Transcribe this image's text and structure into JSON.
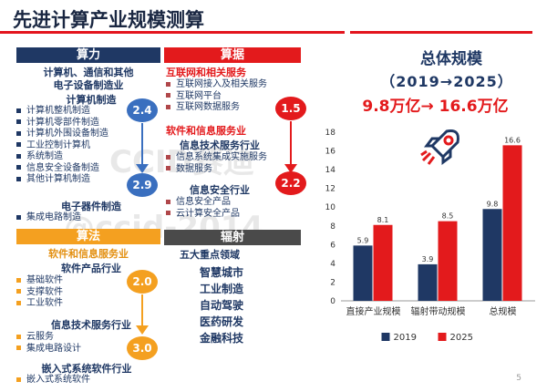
{
  "page": {
    "title": "先进计算产业规模测算",
    "page_number": "5",
    "watermark_line1": "CCID赛迪",
    "watermark_line2": "@ccid-2014"
  },
  "compute_power": {
    "header": "算力",
    "category1": "计算机、通信和其他",
    "category1b": "电子设备制造业",
    "sub1": "计算机制造",
    "items1": [
      "计算机整机制造",
      "计算机零部件制造",
      "计算机外围设备制造",
      "工业控制计算机",
      "系统制造",
      "信息安全设备制造",
      "其他计算机制造"
    ],
    "sub2": "电子器件制造",
    "items2": [
      "集成电路制造"
    ],
    "bubble_top": "2.4",
    "bubble_bottom": "2.9"
  },
  "algorithm": {
    "header": "算法",
    "category": "软件和信息服务业",
    "sub1": "软件产品行业",
    "items1": [
      "基础软件",
      "支撑软件",
      "工业软件"
    ],
    "sub2": "信息技术服务行业",
    "items2": [
      "云服务",
      "集成电路设计"
    ],
    "sub3": "嵌入式系统软件行业",
    "items3": [
      "嵌入式系统软件"
    ],
    "bubble_top": "2.0",
    "bubble_bottom": "3.0"
  },
  "data_section": {
    "header": "算据",
    "category1": "互联网和相关服务",
    "items1": [
      "互联网接入及相关服务",
      "互联网平台",
      "互联网数据服务"
    ],
    "category2": "软件和信息服务业",
    "sub1": "信息技术服务行业",
    "items2": [
      "信息系统集成实施服务",
      "数据服务"
    ],
    "sub2": "信息安全行业",
    "items3": [
      "信息安全产品",
      "云计算安全产品"
    ],
    "bubble_top": "1.5",
    "bubble_bottom": "2.2"
  },
  "radiation": {
    "header": "辐射",
    "category": "五大重点领域",
    "fields": [
      "智慧城市",
      "工业制造",
      "自动驾驶",
      "医药研发",
      "金融科技"
    ]
  },
  "overall_scale": {
    "title": "总体规模",
    "period": "（2019→2025）",
    "growth": "9.8万亿→ 16.6万亿"
  },
  "colors": {
    "navy": "#1f3864",
    "red": "#e31a1c",
    "orange": "#f4a020",
    "blue": "#3a6fbf"
  },
  "chart_data": {
    "type": "bar",
    "categories": [
      "直接产业规模",
      "辐射带动规模",
      "总规模"
    ],
    "series": [
      {
        "name": "2019",
        "values": [
          5.9,
          3.9,
          9.8
        ],
        "color": "#1f3864"
      },
      {
        "name": "2025",
        "values": [
          8.1,
          8.5,
          16.6
        ],
        "color": "#e31a1c"
      }
    ],
    "ylim": [
      0,
      18
    ],
    "yticks": [
      0,
      2,
      4,
      6,
      8,
      10,
      12,
      14,
      16,
      18
    ],
    "grid": false,
    "legend": "bottom"
  }
}
